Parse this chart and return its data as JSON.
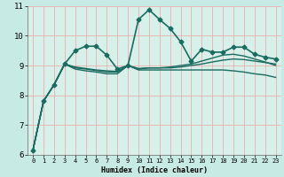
{
  "xlabel": "Humidex (Indice chaleur)",
  "xlim": [
    -0.5,
    23.5
  ],
  "ylim": [
    6,
    11
  ],
  "xticks": [
    0,
    1,
    2,
    3,
    4,
    5,
    6,
    7,
    8,
    9,
    10,
    11,
    12,
    13,
    14,
    15,
    16,
    17,
    18,
    19,
    20,
    21,
    22,
    23
  ],
  "yticks": [
    6,
    7,
    8,
    9,
    10,
    11
  ],
  "bg_color": "#c8eae4",
  "plot_bg": "#d8f0ea",
  "line_color": "#1a6b60",
  "grid_color_major": "#e8b0b0",
  "grid_color_minor": "#f0d0d0",
  "lines": [
    {
      "x": [
        0,
        1,
        2,
        3,
        4,
        5,
        6,
        7,
        8,
        9,
        10,
        11,
        12,
        13,
        14,
        15,
        16,
        17,
        18,
        19,
        20,
        21,
        22,
        23
      ],
      "y": [
        6.15,
        7.8,
        8.35,
        9.05,
        9.5,
        9.65,
        9.65,
        9.35,
        8.88,
        9.0,
        10.55,
        10.88,
        10.55,
        10.25,
        9.8,
        9.15,
        9.55,
        9.45,
        9.45,
        9.62,
        9.62,
        9.38,
        9.28,
        9.22
      ],
      "marker": "D",
      "markersize": 2.5,
      "lw": 1.2
    },
    {
      "x": [
        0,
        1,
        2,
        3,
        4,
        5,
        6,
        7,
        8,
        9,
        10,
        11,
        12,
        13,
        14,
        15,
        16,
        17,
        18,
        19,
        20,
        21,
        22,
        23
      ],
      "y": [
        6.15,
        7.8,
        8.35,
        9.05,
        8.88,
        8.82,
        8.78,
        8.72,
        8.72,
        9.0,
        8.85,
        8.85,
        8.85,
        8.85,
        8.85,
        8.85,
        8.85,
        8.85,
        8.85,
        8.82,
        8.78,
        8.72,
        8.68,
        8.6
      ],
      "marker": null,
      "markersize": 0,
      "lw": 1.0
    },
    {
      "x": [
        0,
        1,
        2,
        3,
        4,
        5,
        6,
        7,
        8,
        9,
        10,
        11,
        12,
        13,
        14,
        15,
        16,
        17,
        18,
        19,
        20,
        21,
        22,
        23
      ],
      "y": [
        6.15,
        7.8,
        8.35,
        9.05,
        8.92,
        8.88,
        8.83,
        8.78,
        8.78,
        9.0,
        8.88,
        8.92,
        8.92,
        8.92,
        8.95,
        9.0,
        9.05,
        9.12,
        9.18,
        9.22,
        9.2,
        9.15,
        9.1,
        9.05
      ],
      "marker": null,
      "markersize": 0,
      "lw": 1.0
    },
    {
      "x": [
        0,
        1,
        2,
        3,
        4,
        5,
        6,
        7,
        8,
        9,
        10,
        11,
        12,
        13,
        14,
        15,
        16,
        17,
        18,
        19,
        20,
        21,
        22,
        23
      ],
      "y": [
        6.15,
        7.8,
        8.35,
        9.05,
        8.95,
        8.9,
        8.85,
        8.82,
        8.8,
        9.0,
        8.9,
        8.92,
        8.92,
        8.95,
        9.0,
        9.05,
        9.15,
        9.25,
        9.35,
        9.38,
        9.32,
        9.22,
        9.12,
        9.0
      ],
      "marker": null,
      "markersize": 0,
      "lw": 1.0
    }
  ],
  "font_family": "monospace"
}
